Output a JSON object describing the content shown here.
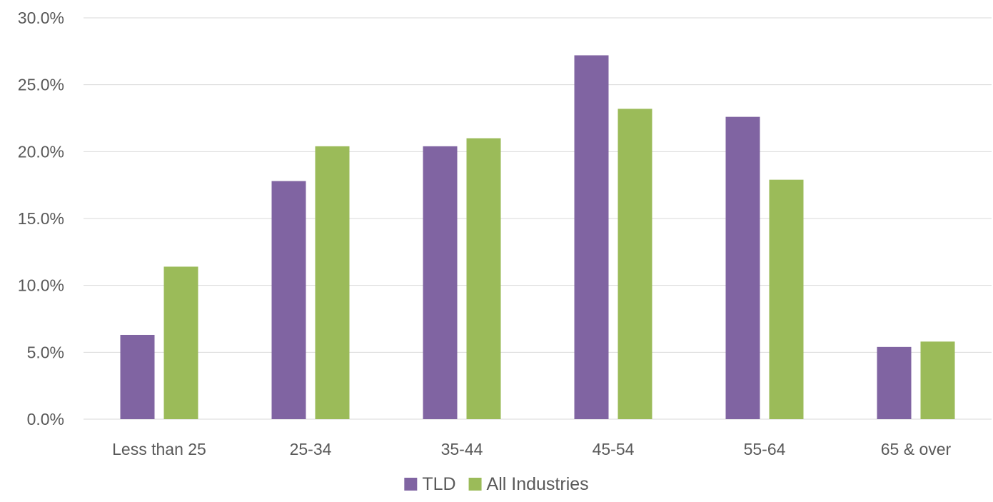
{
  "chart_data": {
    "type": "bar",
    "title": "",
    "xlabel": "",
    "ylabel": "",
    "categories": [
      "Less than 25",
      "25-34",
      "35-44",
      "45-54",
      "55-64",
      "65 & over"
    ],
    "series": [
      {
        "name": "TLD",
        "color": "#8064a2",
        "values": [
          6.3,
          17.8,
          20.4,
          27.2,
          22.6,
          5.4
        ]
      },
      {
        "name": "All Industries",
        "color": "#9bbb59",
        "values": [
          11.4,
          20.4,
          21.0,
          23.2,
          17.9,
          5.8
        ]
      }
    ],
    "ylim": [
      0,
      30
    ],
    "yticks": [
      0,
      5,
      10,
      15,
      20,
      25,
      30
    ],
    "ytick_labels": [
      "0.0%",
      "5.0%",
      "10.0%",
      "15.0%",
      "20.0%",
      "25.0%",
      "30.0%"
    ],
    "grid": true,
    "legend_position": "bottom"
  }
}
